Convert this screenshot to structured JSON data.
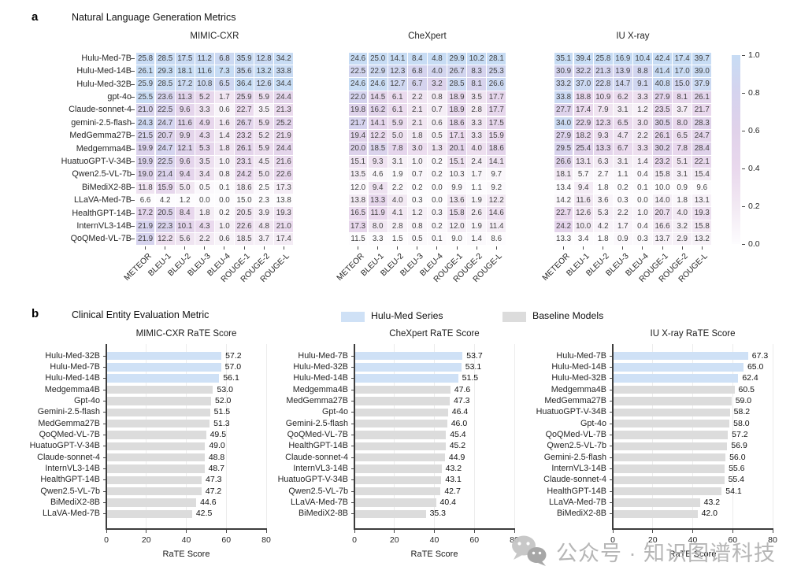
{
  "panel_a": {
    "label": "a",
    "title": "Natural Language Generation Metrics",
    "colorbar_ticks": [
      "1.0",
      "0.8",
      "0.6",
      "0.4",
      "0.2",
      "0.0"
    ]
  },
  "panel_b": {
    "label": "b",
    "title": "Clinical Entity Evaluation Metric",
    "legend": [
      {
        "label": "Hulu-Med Series",
        "color": "#cfe1f6"
      },
      {
        "label": "Baseline Models",
        "color": "#dcdcdc"
      }
    ]
  },
  "watermark": {
    "text": "公众号 · 知识图谱科技"
  },
  "colors": {
    "hulu_bar": "#cfe1f6",
    "baseline_bar": "#dcdcdc",
    "cell_text": "#404040",
    "heatmap_stops": [
      [
        0,
        "#fdfcfe"
      ],
      [
        0.2,
        "#f2e9f3"
      ],
      [
        0.4,
        "#e9d8ed"
      ],
      [
        0.6,
        "#e0d2ea"
      ],
      [
        0.8,
        "#d5d3ee"
      ],
      [
        1,
        "#c7dcf4"
      ]
    ]
  },
  "chart_data": [
    {
      "type": "heatmap",
      "title": "MIMIC-CXR",
      "columns": [
        "METEOR",
        "BLEU-1",
        "BLEU-2",
        "BLEU-3",
        "BLEU-4",
        "ROUGE-1",
        "ROUGE-2",
        "ROUGE-L"
      ],
      "rows": [
        "Hulu-Med-7B",
        "Hulu-Med-14B",
        "Hulu-Med-32B",
        "gpt-4o",
        "Claude-sonnet-4",
        "gemini-2.5-flash",
        "MedGemma27B",
        "Medgemma4B",
        "HuatuoGPT-V-34B",
        "Qwen2.5-VL-7b",
        "BiMediX2-8B",
        "LLaVA-Med-7B",
        "HealthGPT-14B",
        "InternVL3-14B",
        "QoQMed-VL-7B"
      ],
      "values": [
        [
          25.8,
          28.5,
          17.5,
          11.2,
          6.8,
          35.9,
          12.8,
          34.2
        ],
        [
          26.1,
          29.3,
          18.1,
          11.6,
          7.3,
          35.6,
          13.2,
          33.8
        ],
        [
          25.9,
          28.5,
          17.2,
          10.8,
          6.5,
          36.4,
          12.6,
          34.4
        ],
        [
          25.5,
          23.6,
          11.3,
          5.2,
          1.7,
          25.9,
          5.9,
          24.4
        ],
        [
          21.0,
          22.5,
          9.6,
          3.3,
          0.6,
          22.7,
          3.5,
          21.3
        ],
        [
          24.3,
          24.7,
          11.6,
          4.9,
          1.6,
          26.7,
          5.9,
          25.2
        ],
        [
          21.5,
          20.7,
          9.9,
          4.3,
          1.4,
          23.2,
          5.2,
          21.9
        ],
        [
          19.9,
          24.7,
          12.1,
          5.3,
          1.8,
          26.1,
          5.9,
          24.4
        ],
        [
          19.9,
          22.5,
          9.6,
          3.5,
          1.0,
          23.1,
          4.5,
          21.6
        ],
        [
          19.0,
          21.4,
          9.4,
          3.4,
          0.8,
          24.2,
          5.0,
          22.6
        ],
        [
          11.8,
          15.9,
          5.0,
          0.5,
          0.1,
          18.6,
          2.5,
          17.3
        ],
        [
          6.6,
          4.2,
          1.2,
          0.0,
          0.0,
          15.0,
          2.3,
          13.8
        ],
        [
          17.2,
          20.5,
          8.4,
          1.8,
          0.2,
          20.5,
          3.9,
          19.3
        ],
        [
          21.9,
          22.3,
          10.1,
          4.3,
          1.0,
          22.6,
          4.8,
          21.0
        ],
        [
          21.9,
          12.2,
          5.6,
          2.2,
          0.6,
          18.5,
          3.7,
          17.4
        ]
      ],
      "normalization": "per-column",
      "colorbar_range": [
        0,
        1
      ]
    },
    {
      "type": "heatmap",
      "title": "CheXpert",
      "columns": [
        "METEOR",
        "BLEU-1",
        "BLEU-2",
        "BLEU-3",
        "BLEU-4",
        "ROUGE-1",
        "ROUGE-2",
        "ROUGE-L"
      ],
      "rows": [
        "Hulu-Med-7B",
        "Hulu-Med-14B",
        "Hulu-Med-32B",
        "gpt-4o",
        "Claude-sonnet-4",
        "gemini-2.5-flash",
        "MedGemma27B",
        "Medgemma4B",
        "HuatuoGPT-V-34B",
        "Qwen2.5-VL-7b",
        "BiMediX2-8B",
        "LLaVA-Med-7B",
        "HealthGPT-14B",
        "InternVL3-14B",
        "QoQMed-VL-7B"
      ],
      "values": [
        [
          24.6,
          25.0,
          14.1,
          8.4,
          4.8,
          29.9,
          10.2,
          28.1
        ],
        [
          22.5,
          22.9,
          12.3,
          6.8,
          4.0,
          26.7,
          8.3,
          25.3
        ],
        [
          24.6,
          24.6,
          12.7,
          6.7,
          3.2,
          28.5,
          8.1,
          26.6
        ],
        [
          22.0,
          14.5,
          6.1,
          2.2,
          0.8,
          18.9,
          3.5,
          17.7
        ],
        [
          19.8,
          16.2,
          6.1,
          2.1,
          0.7,
          18.9,
          2.8,
          17.7
        ],
        [
          21.7,
          14.1,
          5.9,
          2.1,
          0.6,
          18.6,
          3.3,
          17.5
        ],
        [
          19.4,
          12.2,
          5.0,
          1.8,
          0.5,
          17.1,
          3.3,
          15.9
        ],
        [
          20.0,
          18.5,
          7.8,
          3.0,
          1.3,
          20.1,
          4.0,
          18.6
        ],
        [
          15.1,
          9.3,
          3.1,
          1.0,
          0.2,
          15.1,
          2.4,
          14.1
        ],
        [
          13.5,
          4.6,
          1.9,
          0.7,
          0.2,
          10.3,
          1.7,
          9.7
        ],
        [
          12.0,
          9.4,
          2.2,
          0.2,
          0.0,
          9.9,
          1.1,
          9.2
        ],
        [
          13.8,
          13.3,
          4.0,
          0.3,
          0.0,
          13.6,
          1.9,
          12.2
        ],
        [
          16.5,
          11.9,
          4.1,
          1.2,
          0.3,
          15.8,
          2.6,
          14.6
        ],
        [
          17.3,
          8.0,
          2.8,
          0.8,
          0.2,
          12.0,
          1.9,
          11.4
        ],
        [
          11.5,
          3.3,
          1.5,
          0.5,
          0.1,
          9.0,
          1.4,
          8.6
        ]
      ],
      "normalization": "per-column",
      "colorbar_range": [
        0,
        1
      ]
    },
    {
      "type": "heatmap",
      "title": "IU X-ray",
      "columns": [
        "METEOR",
        "BLEU-1",
        "BLEU-2",
        "BLEU-3",
        "BLEU-4",
        "ROUGE-1",
        "ROUGE-2",
        "ROUGE-L"
      ],
      "rows": [
        "Hulu-Med-7B",
        "Hulu-Med-14B",
        "Hulu-Med-32B",
        "gpt-4o",
        "Claude-sonnet-4",
        "gemini-2.5-flash",
        "MedGemma27B",
        "Medgemma4B",
        "HuatuoGPT-V-34B",
        "Qwen2.5-VL-7b",
        "BiMediX2-8B",
        "LLaVA-Med-7B",
        "HealthGPT-14B",
        "InternVL3-14B",
        "QoQMed-VL-7B"
      ],
      "values": [
        [
          35.1,
          39.4,
          25.8,
          16.9,
          10.4,
          42.4,
          17.4,
          39.7
        ],
        [
          30.9,
          32.2,
          21.3,
          13.9,
          8.8,
          41.4,
          17.0,
          39.0
        ],
        [
          33.2,
          37.0,
          22.8,
          14.7,
          9.1,
          40.8,
          15.0,
          37.9
        ],
        [
          33.8,
          18.8,
          10.9,
          6.2,
          3.3,
          27.9,
          8.1,
          26.1
        ],
        [
          27.7,
          17.4,
          7.9,
          3.1,
          1.2,
          23.5,
          3.7,
          21.7
        ],
        [
          34.0,
          22.9,
          12.3,
          6.5,
          3.0,
          30.5,
          8.0,
          28.3
        ],
        [
          27.9,
          18.2,
          9.3,
          4.7,
          2.2,
          26.1,
          6.5,
          24.7
        ],
        [
          29.5,
          25.4,
          13.3,
          6.7,
          3.3,
          30.2,
          7.8,
          28.4
        ],
        [
          26.6,
          13.1,
          6.3,
          3.1,
          1.4,
          23.2,
          5.1,
          22.1
        ],
        [
          18.1,
          5.7,
          2.7,
          1.1,
          0.4,
          15.8,
          3.1,
          15.4
        ],
        [
          13.4,
          9.4,
          1.8,
          0.2,
          0.1,
          10.0,
          0.9,
          9.6
        ],
        [
          14.2,
          11.6,
          3.6,
          0.3,
          0.0,
          14.0,
          1.8,
          13.1
        ],
        [
          22.7,
          12.6,
          5.3,
          2.2,
          1.0,
          20.7,
          4.0,
          19.3
        ],
        [
          24.2,
          10.0,
          4.2,
          1.7,
          0.4,
          16.6,
          3.2,
          15.8
        ],
        [
          13.3,
          3.4,
          1.8,
          0.9,
          0.3,
          13.7,
          2.9,
          13.2
        ]
      ],
      "normalization": "per-column",
      "colorbar_range": [
        0,
        1
      ]
    },
    {
      "type": "bar",
      "orientation": "horizontal",
      "title": "MIMIC-CXR RaTE Score",
      "xlabel": "RaTE Score",
      "xticks": [
        0,
        20,
        40,
        60,
        80
      ],
      "xlim": [
        0,
        80
      ],
      "categories": [
        "Hulu-Med-32B",
        "Hulu-Med-7B",
        "Hulu-Med-14B",
        "Medgemma4B",
        "Gpt-4o",
        "Gemini-2.5-flash",
        "MedGemma27B",
        "QoQMed-VL-7B",
        "HuatuoGPT-V-34B",
        "Claude-sonnet-4",
        "InternVL3-14B",
        "HealthGPT-14B",
        "Qwen2.5-VL-7b",
        "BiMediX2-8B",
        "LLaVA-Med-7B"
      ],
      "values": [
        57.2,
        57.0,
        56.1,
        53.0,
        52.0,
        51.5,
        51.3,
        49.5,
        49.0,
        48.8,
        48.7,
        47.3,
        47.2,
        44.6,
        42.5
      ],
      "series": [
        "hulu",
        "hulu",
        "hulu",
        "baseline",
        "baseline",
        "baseline",
        "baseline",
        "baseline",
        "baseline",
        "baseline",
        "baseline",
        "baseline",
        "baseline",
        "baseline",
        "baseline"
      ]
    },
    {
      "type": "bar",
      "orientation": "horizontal",
      "title": "CheXpert RaTE Score",
      "xlabel": "RaTE Score",
      "xticks": [
        0,
        20,
        40,
        60,
        80
      ],
      "xlim": [
        0,
        80
      ],
      "categories": [
        "Hulu-Med-7B",
        "Hulu-Med-32B",
        "Hulu-Med-14B",
        "Medgemma4B",
        "MedGemma27B",
        "Gpt-4o",
        "Gemini-2.5-flash",
        "QoQMed-VL-7B",
        "HealthGPT-14B",
        "Claude-sonnet-4",
        "InternVL3-14B",
        "HuatuoGPT-V-34B",
        "Qwen2.5-VL-7b",
        "LLaVA-Med-7B",
        "BiMediX2-8B"
      ],
      "values": [
        53.7,
        53.1,
        51.5,
        47.6,
        47.3,
        46.4,
        46.0,
        45.4,
        45.2,
        44.9,
        43.2,
        43.1,
        42.7,
        40.4,
        35.3
      ],
      "series": [
        "hulu",
        "hulu",
        "hulu",
        "baseline",
        "baseline",
        "baseline",
        "baseline",
        "baseline",
        "baseline",
        "baseline",
        "baseline",
        "baseline",
        "baseline",
        "baseline",
        "baseline"
      ]
    },
    {
      "type": "bar",
      "orientation": "horizontal",
      "title": "IU X-ray RaTE Score",
      "xlabel": "RaTE Score",
      "xticks": [
        0,
        20,
        40,
        60,
        80
      ],
      "xlim": [
        0,
        80
      ],
      "categories": [
        "Hulu-Med-7B",
        "Hulu-Med-14B",
        "Hulu-Med-32B",
        "Medgemma4B",
        "MedGemma27B",
        "HuatuoGPT-V-34B",
        "Gpt-4o",
        "QoQMed-VL-7B",
        "Qwen2.5-VL-7b",
        "Gemini-2.5-flash",
        "InternVL3-14B",
        "Claude-sonnet-4",
        "HealthGPT-14B",
        "LLaVA-Med-7B",
        "BiMediX2-8B"
      ],
      "values": [
        67.3,
        65.0,
        62.4,
        60.5,
        59.0,
        58.2,
        58.0,
        57.2,
        56.9,
        56.0,
        55.6,
        55.4,
        54.1,
        43.2,
        42.0
      ],
      "series": [
        "hulu",
        "hulu",
        "hulu",
        "baseline",
        "baseline",
        "baseline",
        "baseline",
        "baseline",
        "baseline",
        "baseline",
        "baseline",
        "baseline",
        "baseline",
        "baseline",
        "baseline"
      ]
    }
  ]
}
